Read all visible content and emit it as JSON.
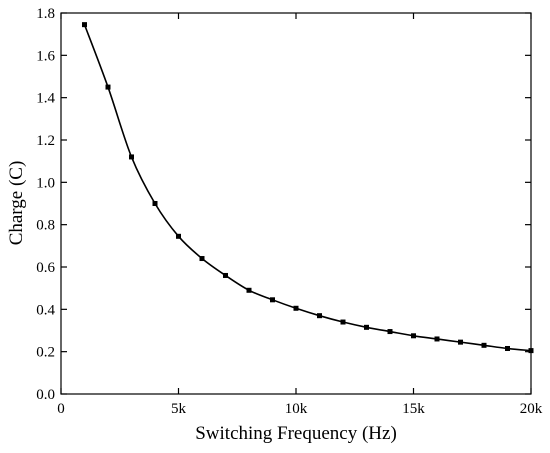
{
  "chart_data": {
    "type": "line",
    "title": "",
    "xlabel": "Switching Frequency (Hz)",
    "ylabel": "Charge (C)",
    "xlim": [
      0,
      20000
    ],
    "ylim": [
      0.0,
      1.8
    ],
    "x_ticks": [
      0,
      5000,
      10000,
      15000,
      20000
    ],
    "x_tick_labels": [
      "0",
      "5k",
      "10k",
      "15k",
      "20k"
    ],
    "y_ticks": [
      0.0,
      0.2,
      0.4,
      0.6,
      0.8,
      1.0,
      1.2,
      1.4,
      1.6,
      1.8
    ],
    "y_tick_labels": [
      "0.0",
      "0.2",
      "0.4",
      "0.6",
      "0.8",
      "1.0",
      "1.2",
      "1.4",
      "1.6",
      "1.8"
    ],
    "grid": false,
    "legend": false,
    "marker": "square",
    "series": [
      {
        "color": "#000000",
        "x": [
          1000,
          2000,
          3000,
          4000,
          5000,
          6000,
          7000,
          8000,
          9000,
          10000,
          11000,
          12000,
          13000,
          14000,
          15000,
          16000,
          17000,
          18000,
          19000,
          20000
        ],
        "y": [
          1.745,
          1.45,
          1.12,
          0.9,
          0.745,
          0.64,
          0.56,
          0.49,
          0.445,
          0.405,
          0.37,
          0.34,
          0.315,
          0.295,
          0.275,
          0.26,
          0.245,
          0.23,
          0.215,
          0.205
        ]
      }
    ]
  }
}
